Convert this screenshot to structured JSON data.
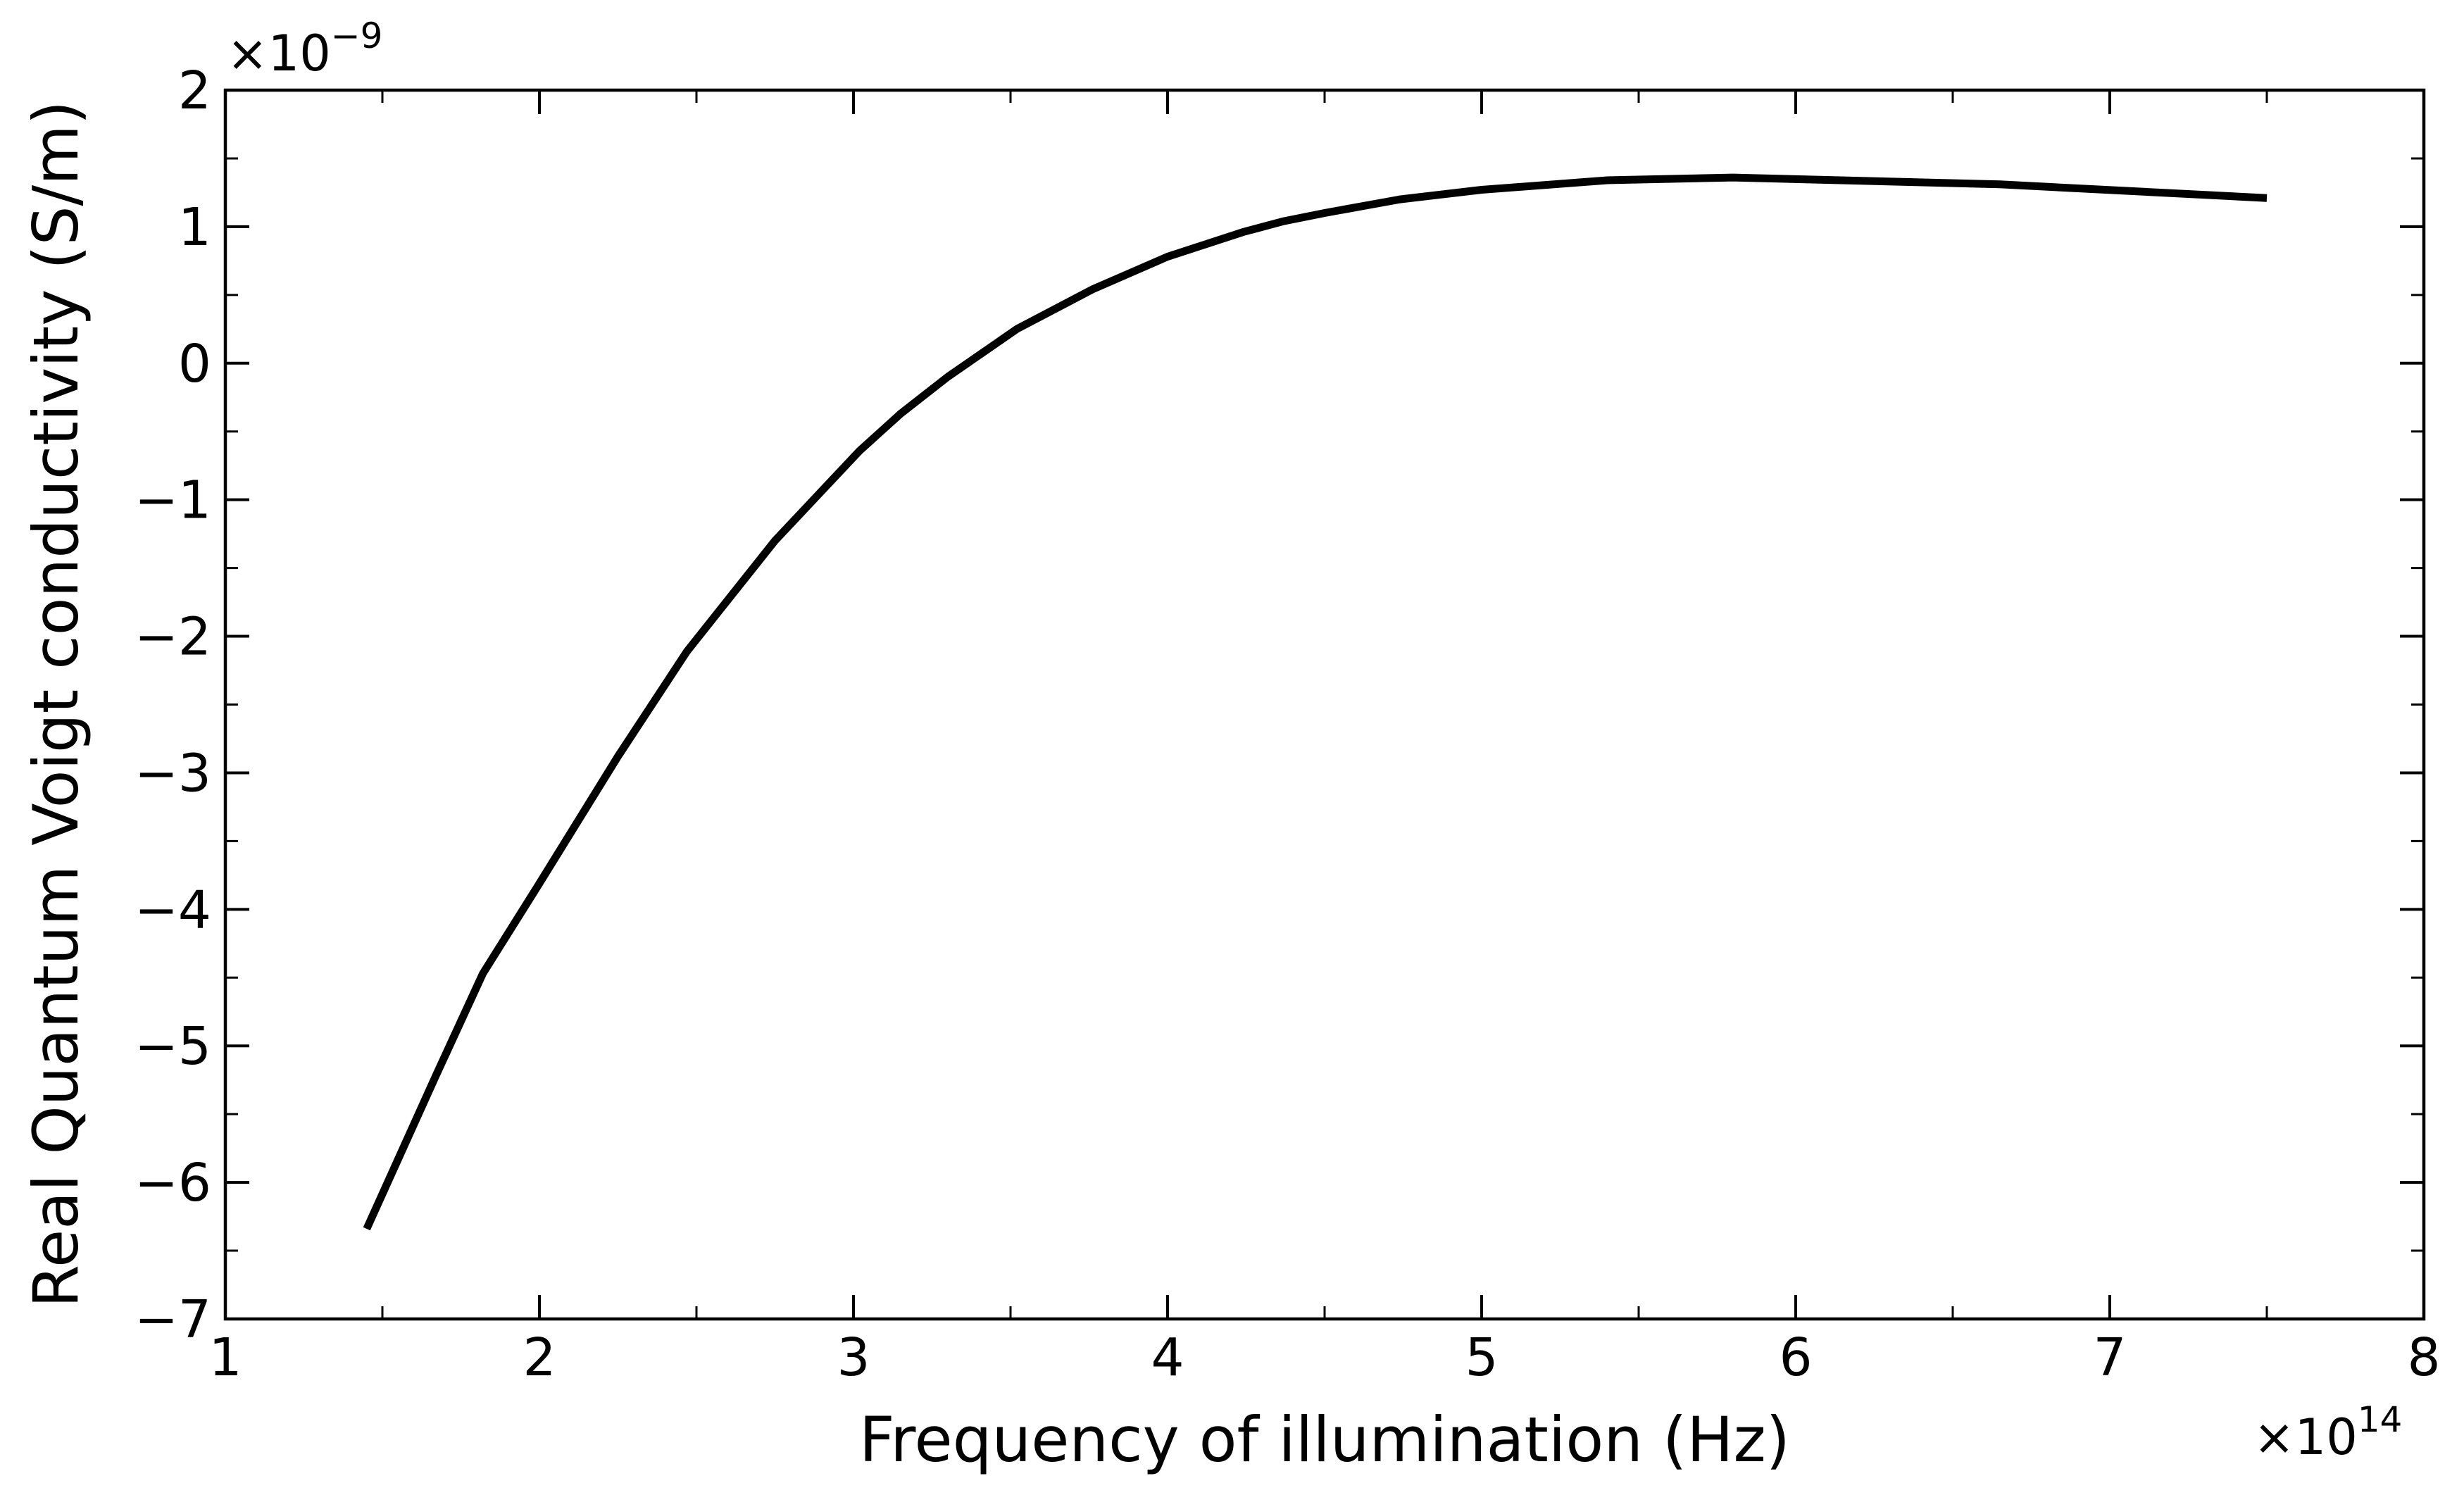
{
  "chart_data": {
    "type": "line",
    "title": "",
    "xlabel": "Frequency of illumination (Hz)",
    "ylabel": "Real Quantum Voigt conductivity (S/m)",
    "x_multiplier": {
      "base": "×10",
      "exp": "14"
    },
    "y_multiplier": {
      "base": "×10",
      "exp": "−9"
    },
    "xlim": [
      1,
      8
    ],
    "ylim": [
      -7,
      2
    ],
    "xticks": [
      1,
      2,
      3,
      4,
      5,
      6,
      7,
      8
    ],
    "xtick_labels": [
      "1",
      "2",
      "3",
      "4",
      "5",
      "6",
      "7",
      "8"
    ],
    "yticks": [
      2,
      1,
      0,
      -1,
      -2,
      -3,
      -4,
      -5,
      -6,
      -7
    ],
    "ytick_labels": [
      "2",
      "1",
      "0",
      "−1",
      "−2",
      "−3",
      "−4",
      "−5",
      "−6",
      "−7"
    ],
    "grid": false,
    "series": [
      {
        "color": "#000000",
        "x": [
          1.45,
          1.67,
          1.82,
          2.0,
          2.25,
          2.47,
          2.75,
          3.02,
          3.15,
          3.3,
          3.52,
          3.76,
          4.0,
          4.24,
          4.37,
          4.5,
          4.74,
          5.0,
          5.4,
          5.8,
          6.65,
          7.5
        ],
        "y": [
          -6.34,
          -5.22,
          -4.47,
          -3.81,
          -2.88,
          -2.11,
          -1.3,
          -0.64,
          -0.37,
          -0.1,
          0.25,
          0.54,
          0.78,
          0.96,
          1.04,
          1.1,
          1.2,
          1.27,
          1.34,
          1.36,
          1.31,
          1.21
        ]
      }
    ]
  }
}
